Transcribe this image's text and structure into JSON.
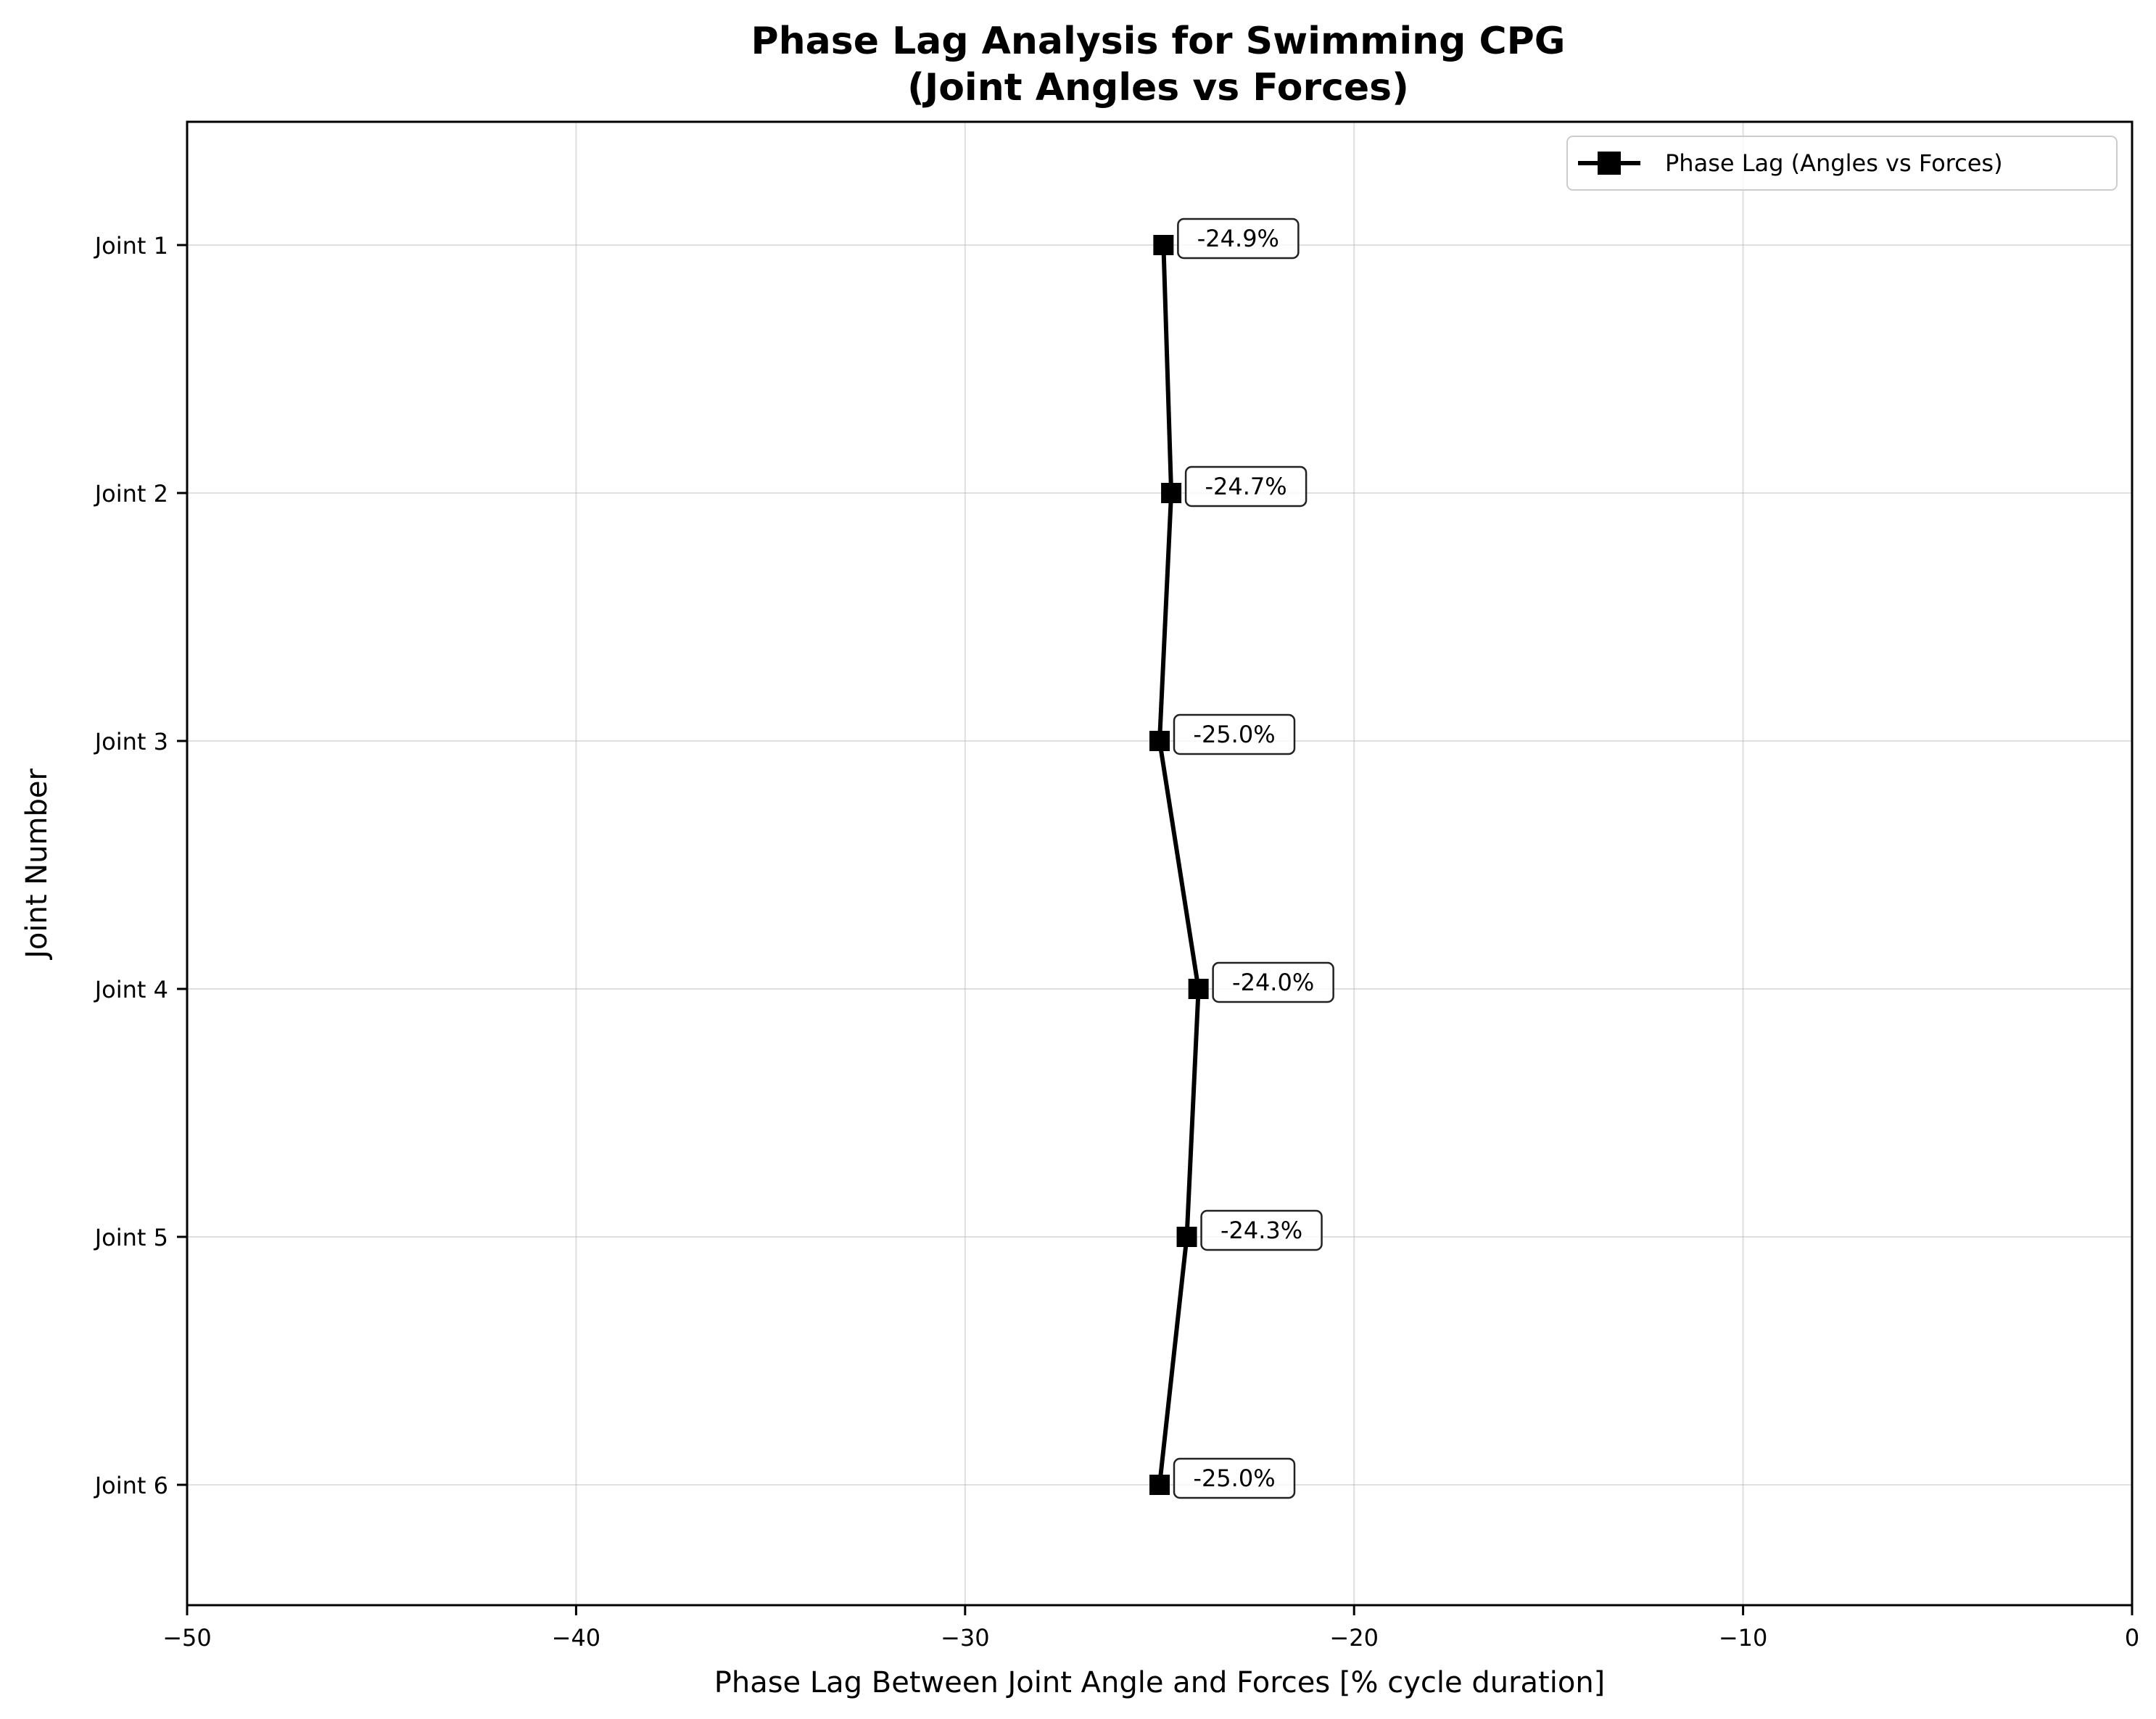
{
  "chart_data": {
    "type": "line",
    "orientation": "horizontal",
    "title": "Phase Lag Analysis for Swimming CPG",
    "subtitle": "(Joint Angles vs Forces)",
    "xlabel": "Phase Lag Between Joint Angle and Forces [% cycle duration]",
    "ylabel": "Joint Number",
    "xlim": [
      -50,
      0
    ],
    "x_ticks": [
      -50,
      -40,
      -30,
      -20,
      -10,
      0
    ],
    "x_tick_labels": [
      "−50",
      "−40",
      "−30",
      "−20",
      "−10",
      "0"
    ],
    "categories": [
      "Joint 1",
      "Joint 2",
      "Joint 3",
      "Joint 4",
      "Joint 5",
      "Joint 6"
    ],
    "grid": true,
    "legend_position": "top-right",
    "series": [
      {
        "name": "Phase Lag (Angles vs Forces)",
        "marker": "square",
        "color": "#000000",
        "values": [
          -24.9,
          -24.7,
          -25.0,
          -24.0,
          -24.3,
          -25.0
        ],
        "data_labels": [
          "-24.9%",
          "-24.7%",
          "-25.0%",
          "-24.0%",
          "-24.3%",
          "-25.0%"
        ]
      }
    ]
  }
}
